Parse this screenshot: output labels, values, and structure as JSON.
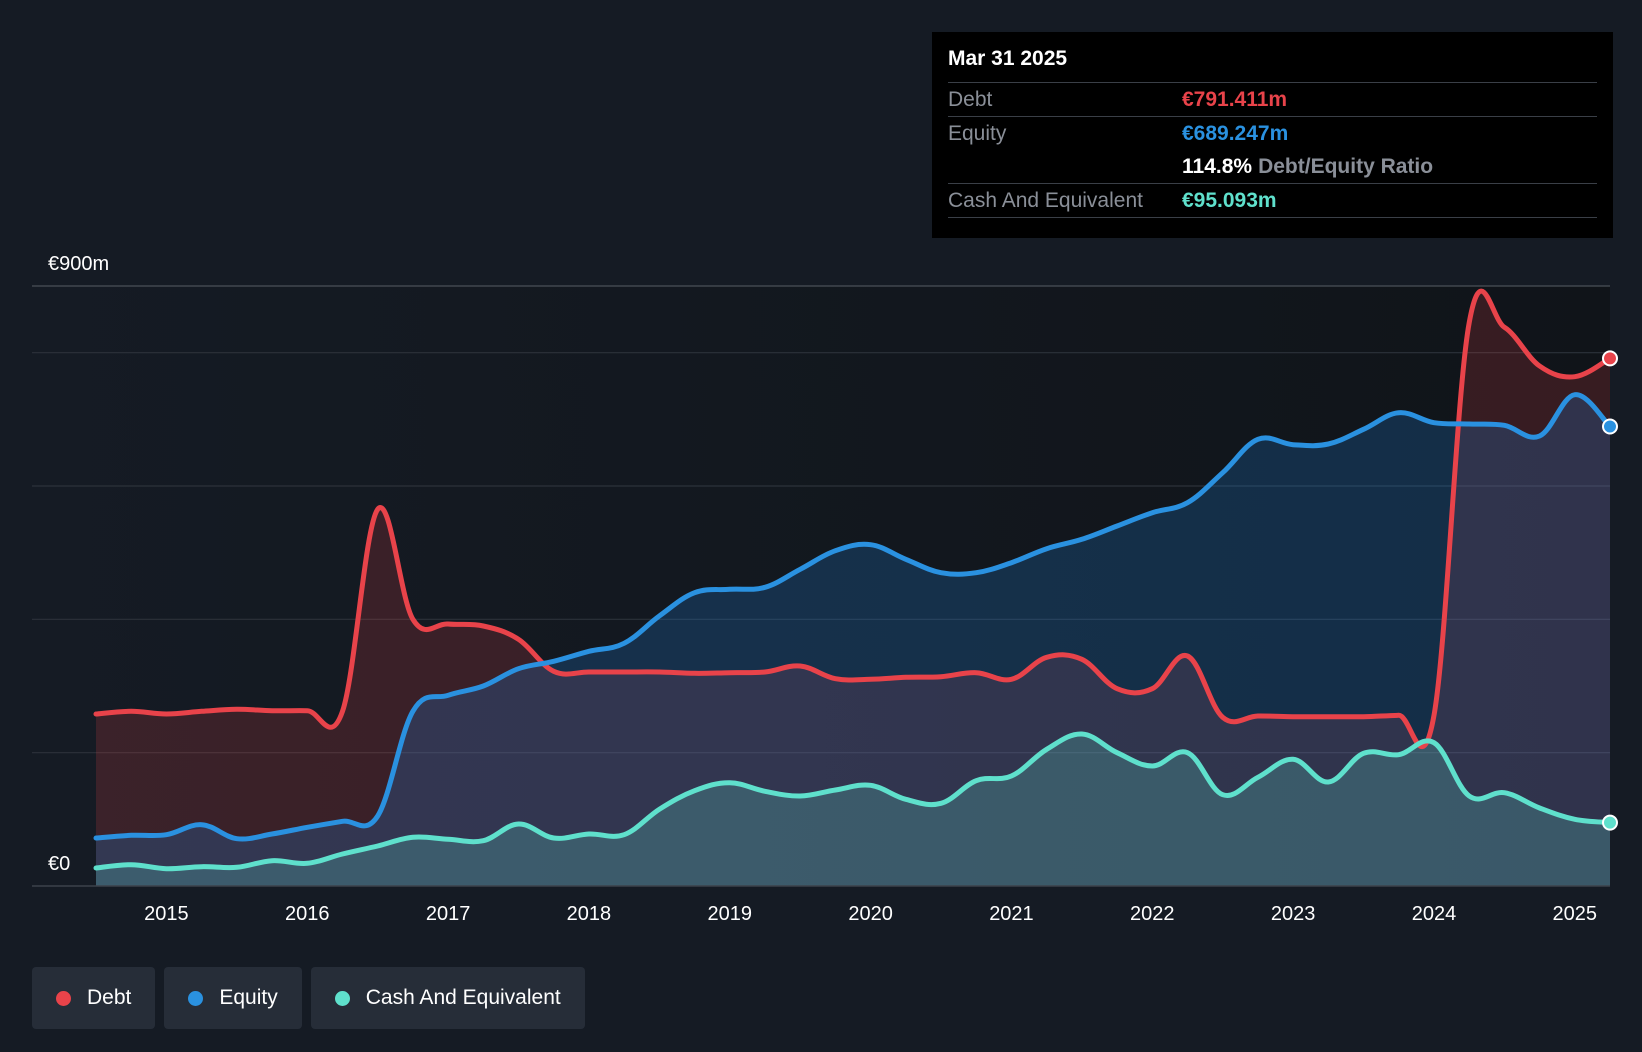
{
  "chart_data": {
    "type": "area",
    "y_top_label": "€900m",
    "y_bottom_label": "€0",
    "ylim": [
      0,
      900
    ],
    "xlim": [
      2014.5,
      2025.25
    ],
    "x_ticks": [
      "2015",
      "2016",
      "2017",
      "2018",
      "2019",
      "2020",
      "2021",
      "2022",
      "2023",
      "2024",
      "2025"
    ],
    "series": [
      {
        "name": "Debt",
        "color": "#e8434a",
        "points": [
          [
            2014.5,
            258
          ],
          [
            2014.75,
            262
          ],
          [
            2015.0,
            258
          ],
          [
            2015.25,
            262
          ],
          [
            2015.5,
            265
          ],
          [
            2015.75,
            263
          ],
          [
            2016.0,
            263
          ],
          [
            2016.25,
            262
          ],
          [
            2016.5,
            565
          ],
          [
            2016.75,
            400
          ],
          [
            2017.0,
            393
          ],
          [
            2017.25,
            390
          ],
          [
            2017.5,
            370
          ],
          [
            2017.75,
            322
          ],
          [
            2018.0,
            321
          ],
          [
            2018.25,
            321
          ],
          [
            2018.5,
            321
          ],
          [
            2018.75,
            319
          ],
          [
            2019.0,
            320
          ],
          [
            2019.25,
            321
          ],
          [
            2019.5,
            330
          ],
          [
            2019.75,
            311
          ],
          [
            2020.0,
            310
          ],
          [
            2020.25,
            313
          ],
          [
            2020.5,
            314
          ],
          [
            2020.75,
            320
          ],
          [
            2021.0,
            310
          ],
          [
            2021.25,
            343
          ],
          [
            2021.5,
            340
          ],
          [
            2021.75,
            296
          ],
          [
            2022.0,
            296
          ],
          [
            2022.25,
            345
          ],
          [
            2022.5,
            253
          ],
          [
            2022.75,
            255
          ],
          [
            2023.0,
            254
          ],
          [
            2023.25,
            254
          ],
          [
            2023.5,
            254
          ],
          [
            2023.75,
            256
          ],
          [
            2024.0,
            256
          ],
          [
            2024.25,
            845
          ],
          [
            2024.5,
            838
          ],
          [
            2024.75,
            780
          ],
          [
            2025.0,
            764
          ],
          [
            2025.25,
            791.411
          ]
        ]
      },
      {
        "name": "Equity",
        "color": "#2a91e0",
        "points": [
          [
            2014.5,
            72
          ],
          [
            2014.75,
            76
          ],
          [
            2015.0,
            77
          ],
          [
            2015.25,
            92
          ],
          [
            2015.5,
            71
          ],
          [
            2015.75,
            78
          ],
          [
            2016.0,
            88
          ],
          [
            2016.25,
            97
          ],
          [
            2016.5,
            105
          ],
          [
            2016.75,
            262
          ],
          [
            2017.0,
            286
          ],
          [
            2017.25,
            300
          ],
          [
            2017.5,
            326
          ],
          [
            2017.75,
            337
          ],
          [
            2018.0,
            352
          ],
          [
            2018.25,
            364
          ],
          [
            2018.5,
            405
          ],
          [
            2018.75,
            440
          ],
          [
            2019.0,
            445
          ],
          [
            2019.25,
            448
          ],
          [
            2019.5,
            475
          ],
          [
            2019.75,
            503
          ],
          [
            2020.0,
            512
          ],
          [
            2020.25,
            490
          ],
          [
            2020.5,
            470
          ],
          [
            2020.75,
            470
          ],
          [
            2021.0,
            485
          ],
          [
            2021.25,
            506
          ],
          [
            2021.5,
            520
          ],
          [
            2021.75,
            540
          ],
          [
            2022.0,
            560
          ],
          [
            2022.25,
            575
          ],
          [
            2022.5,
            620
          ],
          [
            2022.75,
            670
          ],
          [
            2023.0,
            662
          ],
          [
            2023.25,
            663
          ],
          [
            2023.5,
            685
          ],
          [
            2023.75,
            710
          ],
          [
            2024.0,
            695
          ],
          [
            2024.25,
            693
          ],
          [
            2024.5,
            691
          ],
          [
            2024.75,
            675
          ],
          [
            2025.0,
            737
          ],
          [
            2025.25,
            689.247
          ]
        ]
      },
      {
        "name": "Cash And Equivalent",
        "color": "#5fe0cc",
        "points": [
          [
            2014.5,
            27
          ],
          [
            2014.75,
            32
          ],
          [
            2015.0,
            26
          ],
          [
            2015.25,
            29
          ],
          [
            2015.5,
            28
          ],
          [
            2015.75,
            38
          ],
          [
            2016.0,
            34
          ],
          [
            2016.25,
            48
          ],
          [
            2016.5,
            60
          ],
          [
            2016.75,
            73
          ],
          [
            2017.0,
            70
          ],
          [
            2017.25,
            68
          ],
          [
            2017.5,
            93
          ],
          [
            2017.75,
            72
          ],
          [
            2018.0,
            78
          ],
          [
            2018.25,
            77
          ],
          [
            2018.5,
            115
          ],
          [
            2018.75,
            143
          ],
          [
            2019.0,
            155
          ],
          [
            2019.25,
            142
          ],
          [
            2019.5,
            135
          ],
          [
            2019.75,
            144
          ],
          [
            2020.0,
            151
          ],
          [
            2020.25,
            130
          ],
          [
            2020.5,
            124
          ],
          [
            2020.75,
            158
          ],
          [
            2021.0,
            165
          ],
          [
            2021.25,
            205
          ],
          [
            2021.5,
            228
          ],
          [
            2021.75,
            200
          ],
          [
            2022.0,
            180
          ],
          [
            2022.25,
            200
          ],
          [
            2022.5,
            137
          ],
          [
            2022.75,
            163
          ],
          [
            2023.0,
            190
          ],
          [
            2023.25,
            156
          ],
          [
            2023.5,
            199
          ],
          [
            2023.75,
            197
          ],
          [
            2024.0,
            215
          ],
          [
            2024.25,
            135
          ],
          [
            2024.5,
            140
          ],
          [
            2024.75,
            117
          ],
          [
            2025.0,
            100
          ],
          [
            2025.25,
            95.093
          ]
        ]
      }
    ]
  },
  "tooltip": {
    "date": "Mar 31 2025",
    "debt_label": "Debt",
    "debt_value": "€791.411m",
    "equity_label": "Equity",
    "equity_value": "€689.247m",
    "ratio_value": "114.8%",
    "ratio_label": "Debt/Equity Ratio",
    "cash_label": "Cash And Equivalent",
    "cash_value": "€95.093m"
  },
  "legend": [
    {
      "label": "Debt",
      "color": "#e8434a"
    },
    {
      "label": "Equity",
      "color": "#2a91e0"
    },
    {
      "label": "Cash And Equivalent",
      "color": "#5fe0cc"
    }
  ]
}
